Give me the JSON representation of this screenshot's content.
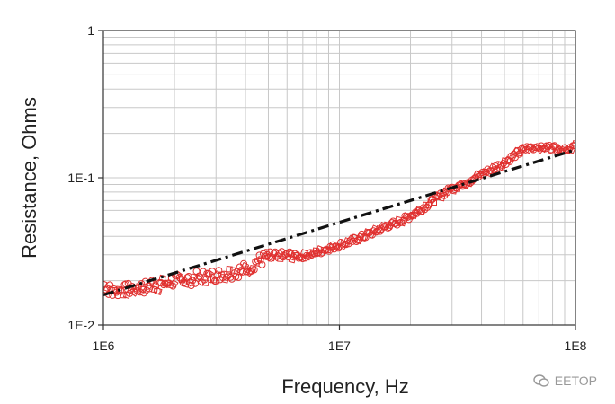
{
  "chart_data": {
    "type": "scatter",
    "xlabel": "Frequency, Hz",
    "ylabel": "Resistance, Ohms",
    "x_scale": "log",
    "y_scale": "log",
    "xlim": [
      1000000,
      100000000
    ],
    "ylim": [
      0.01,
      1
    ],
    "x_ticks": [
      "1E6",
      "1E7",
      "1E8"
    ],
    "y_ticks": [
      "1E-2",
      "1E-1",
      "1"
    ],
    "grid": true,
    "colors": {
      "measured": "#e0302f",
      "model": "#111111",
      "grid": "#c8c8c8"
    },
    "series": [
      {
        "style": "red-open-markers",
        "x": [
          1000000,
          1100000,
          1200000,
          1300000,
          1400000,
          1500000,
          1600000,
          1700000,
          1800000,
          2000000,
          2200000,
          2500000,
          2800000,
          3200000,
          3600000,
          4000000,
          4500000,
          5000000,
          5600000,
          6300000,
          7000000,
          8000000,
          9000000,
          10000000,
          11200000,
          12600000,
          14100000,
          15800000,
          17800000,
          20000000,
          22400000,
          25100000,
          28200000,
          31600000,
          35500000,
          39800000,
          44700000,
          50100000,
          56200000,
          63100000,
          70800000,
          79400000,
          89100000,
          100000000
        ],
        "y": [
          0.019,
          0.0165,
          0.017,
          0.0175,
          0.018,
          0.018,
          0.019,
          0.0185,
          0.019,
          0.02,
          0.02,
          0.021,
          0.0215,
          0.022,
          0.023,
          0.024,
          0.027,
          0.029,
          0.0285,
          0.029,
          0.0295,
          0.031,
          0.033,
          0.035,
          0.037,
          0.04,
          0.043,
          0.047,
          0.05,
          0.055,
          0.062,
          0.07,
          0.08,
          0.088,
          0.095,
          0.105,
          0.115,
          0.127,
          0.145,
          0.16,
          0.163,
          0.16,
          0.158,
          0.163
        ]
      },
      {
        "style": "black-dash-dot-fit",
        "x": [
          1000000,
          100000000
        ],
        "y": [
          0.016,
          0.155
        ]
      }
    ]
  },
  "watermark": {
    "text": "EETOP"
  }
}
